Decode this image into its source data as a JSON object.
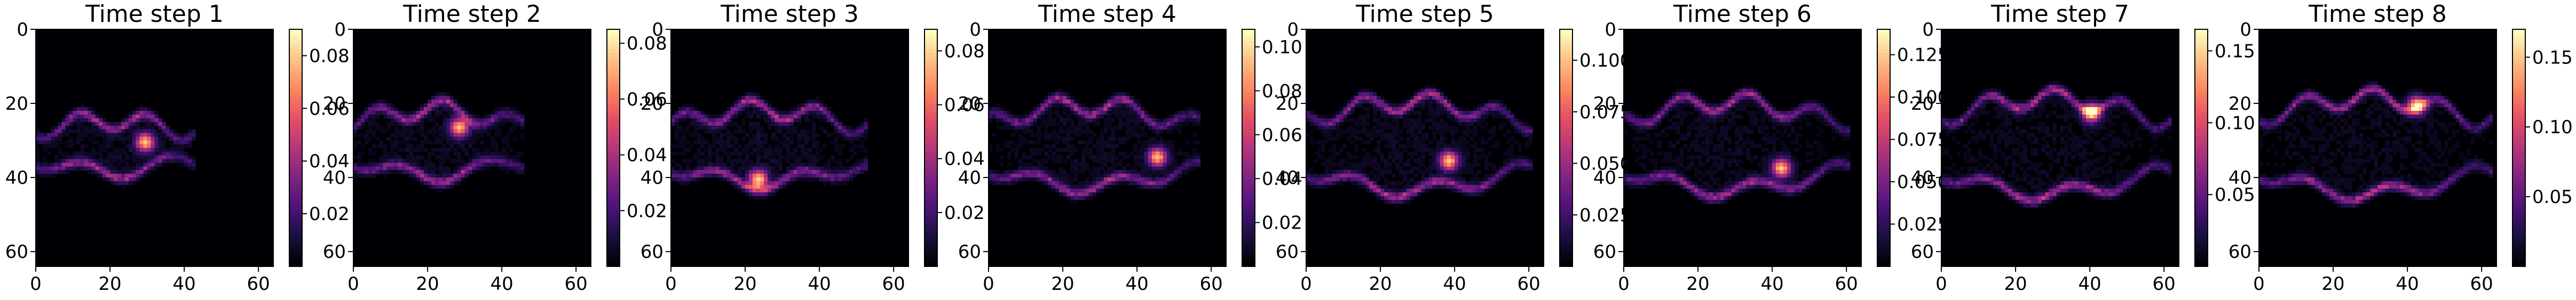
{
  "figure": {
    "colormap": "magma",
    "background_color": "#000004",
    "panel_count": 8
  },
  "chart_data": [
    {
      "type": "heatmap",
      "title": "Time step 1",
      "xticks": [
        0,
        20,
        40,
        60
      ],
      "yticks": [
        0,
        20,
        40,
        60
      ],
      "xlim": [
        0,
        64
      ],
      "ylim": [
        0,
        64
      ],
      "grid": false,
      "colorbar": {
        "ticks": [
          0.02,
          0.04,
          0.06,
          0.08
        ],
        "tick_labels": [
          "0.02",
          "0.04",
          "0.06",
          "0.08"
        ],
        "range": [
          0.0,
          0.09
        ]
      },
      "features": {
        "x_extent": [
          0,
          42
        ],
        "spread": 7,
        "peak": 0.085,
        "center_y": 31,
        "hot_spot": [
          29,
          30
        ]
      }
    },
    {
      "type": "heatmap",
      "title": "Time step 2",
      "xticks": [
        0,
        20,
        40,
        60
      ],
      "yticks": [
        0,
        20,
        40,
        60
      ],
      "xlim": [
        0,
        64
      ],
      "ylim": [
        0,
        64
      ],
      "grid": false,
      "colorbar": {
        "ticks": [
          0.02,
          0.04,
          0.06,
          0.08
        ],
        "tick_labels": [
          "0.02",
          "0.04",
          "0.06",
          "0.08"
        ],
        "range": [
          0.0,
          0.085
        ]
      },
      "features": {
        "x_extent": [
          0,
          45
        ],
        "spread": 9,
        "peak": 0.08,
        "center_y": 30,
        "hot_spot": [
          28,
          26
        ]
      }
    },
    {
      "type": "heatmap",
      "title": "Time step 3",
      "xticks": [
        0,
        20,
        40,
        60
      ],
      "yticks": [
        0,
        20,
        40,
        60
      ],
      "xlim": [
        0,
        64
      ],
      "ylim": [
        0,
        64
      ],
      "grid": false,
      "colorbar": {
        "ticks": [
          0.02,
          0.04,
          0.06,
          0.08
        ],
        "tick_labels": [
          "0.02",
          "0.04",
          "0.06",
          "0.08"
        ],
        "range": [
          0.0,
          0.088
        ]
      },
      "features": {
        "x_extent": [
          0,
          52
        ],
        "spread": 10,
        "peak": 0.085,
        "center_y": 31,
        "hot_spot": [
          23,
          40
        ]
      }
    },
    {
      "type": "heatmap",
      "title": "Time step 4",
      "xticks": [
        0,
        20,
        40,
        60
      ],
      "yticks": [
        0,
        20,
        40,
        60
      ],
      "xlim": [
        0,
        64
      ],
      "ylim": [
        0,
        64
      ],
      "grid": false,
      "colorbar": {
        "ticks": [
          0.02,
          0.04,
          0.06,
          0.08,
          0.1
        ],
        "tick_labels": [
          "0.02",
          "0.04",
          "0.06",
          "0.08",
          "0.10"
        ],
        "range": [
          0.0,
          0.108
        ]
      },
      "features": {
        "x_extent": [
          0,
          56
        ],
        "spread": 11,
        "peak": 0.1,
        "center_y": 31,
        "hot_spot": [
          45,
          34
        ]
      }
    },
    {
      "type": "heatmap",
      "title": "Time step 5",
      "xticks": [
        0,
        20,
        40,
        60
      ],
      "yticks": [
        0,
        20,
        40,
        60
      ],
      "xlim": [
        0,
        64
      ],
      "ylim": [
        0,
        64
      ],
      "grid": false,
      "colorbar": {
        "ticks": [
          0.025,
          0.05,
          0.075,
          0.1
        ],
        "tick_labels": [
          "0.025",
          "0.050",
          "0.075",
          "0.100"
        ],
        "range": [
          0.0,
          0.115
        ]
      },
      "features": {
        "x_extent": [
          0,
          60
        ],
        "spread": 12,
        "peak": 0.11,
        "center_y": 31,
        "hot_spot": [
          38,
          35
        ]
      }
    },
    {
      "type": "heatmap",
      "title": "Time step 6",
      "xticks": [
        0,
        20,
        40,
        60
      ],
      "yticks": [
        0,
        20,
        40,
        60
      ],
      "xlim": [
        0,
        64
      ],
      "ylim": [
        0,
        64
      ],
      "grid": false,
      "colorbar": {
        "ticks": [
          0.025,
          0.05,
          0.075,
          0.1,
          0.125
        ],
        "tick_labels": [
          "0.025",
          "0.050",
          "0.075",
          "0.100",
          "0.125"
        ],
        "range": [
          0.0,
          0.14
        ]
      },
      "features": {
        "x_extent": [
          0,
          60
        ],
        "spread": 12,
        "peak": 0.135,
        "center_y": 31,
        "hot_spot": [
          42,
          37
        ]
      }
    },
    {
      "type": "heatmap",
      "title": "Time step 7",
      "xticks": [
        0,
        20,
        40,
        60
      ],
      "yticks": [
        0,
        20,
        40,
        60
      ],
      "xlim": [
        0,
        64
      ],
      "ylim": [
        0,
        64
      ],
      "grid": false,
      "colorbar": {
        "ticks": [
          0.05,
          0.1,
          0.15
        ],
        "tick_labels": [
          "0.05",
          "0.10",
          "0.15"
        ],
        "range": [
          0.0,
          0.165
        ]
      },
      "features": {
        "x_extent": [
          0,
          61
        ],
        "spread": 13,
        "peak": 0.16,
        "center_y": 31,
        "hot_spot": [
          40,
          22
        ]
      }
    },
    {
      "type": "heatmap",
      "title": "Time step 8",
      "xticks": [
        0,
        20,
        40,
        60
      ],
      "yticks": [
        0,
        20,
        40,
        60
      ],
      "xlim": [
        0,
        64
      ],
      "ylim": [
        0,
        64
      ],
      "grid": false,
      "colorbar": {
        "ticks": [
          0.05,
          0.1,
          0.15
        ],
        "tick_labels": [
          "0.05",
          "0.10",
          "0.15"
        ],
        "range": [
          0.0,
          0.17
        ]
      },
      "features": {
        "x_extent": [
          0,
          62
        ],
        "spread": 13,
        "peak": 0.165,
        "center_y": 31,
        "hot_spot": [
          42,
          20
        ]
      }
    }
  ]
}
